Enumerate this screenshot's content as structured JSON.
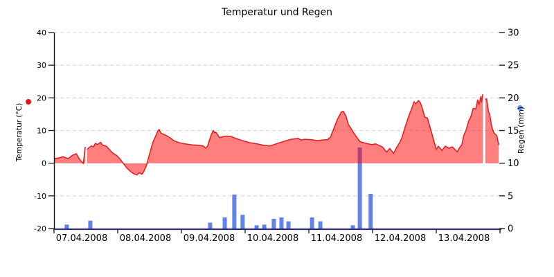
{
  "title": "Temperatur und Regen",
  "colors": {
    "temp_fill": "rgba(255,0,0,0.5)",
    "temp_line": "#e62020",
    "rain_bar": "#6283ea",
    "grid": "#dcdcdc",
    "left_axis_line": "#111111",
    "x_axis_line": "#2e2e78",
    "tick": "#222222",
    "text": "#000000",
    "legend_temp_dot": "#ee1111",
    "legend_rain_dot": "#6d8fef"
  },
  "chart_data": {
    "type": "area",
    "title": "Temperatur und Regen",
    "grid": "horizontal dashed",
    "x_axis": {
      "unit": "days",
      "n_days": 7,
      "tick_labels": [
        "07.04.2008",
        "08.04.2008",
        "09.04.2008",
        "10.04.2008",
        "11.04.2008",
        "12.04.2008",
        "13.04.2008"
      ]
    },
    "left_axis": {
      "label": "Temperatur (°C)",
      "range": [
        -20,
        40
      ],
      "ticks": [
        40,
        30,
        20,
        10,
        0,
        -10,
        -20
      ],
      "gridline_values": [
        40,
        30,
        20,
        10,
        -10
      ]
    },
    "right_axis": {
      "label": "Regen (mm)",
      "range": [
        0,
        30
      ],
      "ticks": [
        30,
        25,
        20,
        15,
        10,
        5,
        0
      ]
    },
    "series": [
      {
        "name": "Temperatur",
        "kind": "area-to-zero",
        "axis": "left",
        "unit": "°C",
        "segments": [
          {
            "t": [
              0.0,
              0.08,
              0.14,
              0.22,
              0.29,
              0.35,
              0.4,
              0.46,
              0.49
            ],
            "v": [
              1.4,
              1.6,
              2.0,
              1.4,
              2.4,
              2.9,
              1.2,
              -0.1,
              5.0
            ]
          },
          {
            "t": [
              0.52,
              0.55,
              0.59,
              0.62,
              0.65,
              0.68,
              0.73,
              0.76,
              0.82,
              0.87,
              0.92,
              0.98,
              1.03,
              1.09,
              1.14,
              1.2,
              1.25,
              1.3,
              1.34,
              1.38,
              1.41,
              1.45,
              1.49,
              1.52,
              1.55,
              1.6,
              1.63,
              1.65,
              1.68,
              1.76,
              1.82,
              1.88,
              1.96,
              2.03,
              2.1,
              2.17,
              2.25,
              2.34,
              2.38,
              2.41,
              2.47,
              2.5,
              2.52,
              2.54,
              2.6,
              2.65,
              2.71,
              2.77,
              2.85,
              2.96,
              3.07,
              3.17,
              3.28,
              3.39,
              3.5,
              3.61,
              3.72,
              3.83,
              3.88,
              3.93,
              4.04,
              4.13,
              4.21,
              4.29,
              4.34,
              4.39,
              4.45,
              4.51,
              4.54,
              4.58,
              4.62,
              4.7,
              4.8,
              4.91,
              4.99,
              5.05,
              5.12,
              5.16,
              5.22,
              5.27,
              5.33,
              5.38,
              5.43,
              5.46,
              5.51,
              5.57,
              5.62,
              5.65,
              5.68,
              5.72,
              5.75,
              5.78,
              5.82,
              5.86,
              5.91,
              5.97,
              6.0,
              6.03,
              6.09,
              6.14,
              6.2,
              6.25,
              6.33,
              6.36,
              6.4,
              6.43,
              6.47,
              6.51,
              6.54,
              6.58,
              6.62,
              6.65,
              6.67,
              6.7,
              6.71,
              6.73
            ],
            "v": [
              4.2,
              4.8,
              5.3,
              5.0,
              6.1,
              5.7,
              6.4,
              5.6,
              5.2,
              4.2,
              3.1,
              2.4,
              1.4,
              -0.1,
              -1.4,
              -2.5,
              -3.2,
              -3.6,
              -2.9,
              -3.4,
              -2.5,
              -0.7,
              2.1,
              4.2,
              6.3,
              8.5,
              9.9,
              10.3,
              9.2,
              8.5,
              7.8,
              6.9,
              6.3,
              6.0,
              5.8,
              5.6,
              5.5,
              5.3,
              4.6,
              5.2,
              8.8,
              10.0,
              9.3,
              9.5,
              7.8,
              8.2,
              8.3,
              8.2,
              7.6,
              6.9,
              6.3,
              6.0,
              5.5,
              5.3,
              6.0,
              6.7,
              7.3,
              7.6,
              7.1,
              7.3,
              7.2,
              6.9,
              7.1,
              7.2,
              8.0,
              10.5,
              13.5,
              15.7,
              15.9,
              14.5,
              11.9,
              9.4,
              6.6,
              6.0,
              5.7,
              5.9,
              5.3,
              4.9,
              3.4,
              4.5,
              3.0,
              4.9,
              6.5,
              7.7,
              11.0,
              14.5,
              17.0,
              18.8,
              18.2,
              19.2,
              18.5,
              16.8,
              14.1,
              13.9,
              10.5,
              6.3,
              4.2,
              5.2,
              3.9,
              5.2,
              4.6,
              5.0,
              3.5,
              4.6,
              5.6,
              8.4,
              10.2,
              13.0,
              14.1,
              16.8,
              16.6,
              19.4,
              17.9,
              20.4,
              18.7,
              21.1
            ]
          },
          {
            "t": [
              6.77,
              6.79,
              6.82,
              6.84,
              6.87,
              6.9,
              6.95,
              6.98
            ],
            "v": [
              19.5,
              19.7,
              15.8,
              14.7,
              11.3,
              9.4,
              8.4,
              5.6
            ]
          }
        ]
      },
      {
        "name": "Regen",
        "kind": "bar",
        "axis": "right",
        "unit": "mm",
        "points": [
          [
            0.2,
            0.6
          ],
          [
            0.57,
            1.2
          ],
          [
            2.45,
            0.9
          ],
          [
            2.68,
            1.7
          ],
          [
            2.83,
            5.2
          ],
          [
            2.96,
            2.1
          ],
          [
            3.18,
            0.5
          ],
          [
            3.3,
            0.6
          ],
          [
            3.45,
            1.5
          ],
          [
            3.57,
            1.7
          ],
          [
            3.68,
            1.1
          ],
          [
            4.05,
            1.7
          ],
          [
            4.18,
            1.1
          ],
          [
            4.69,
            0.5
          ],
          [
            4.8,
            12.4
          ],
          [
            4.97,
            5.3
          ]
        ]
      }
    ]
  }
}
